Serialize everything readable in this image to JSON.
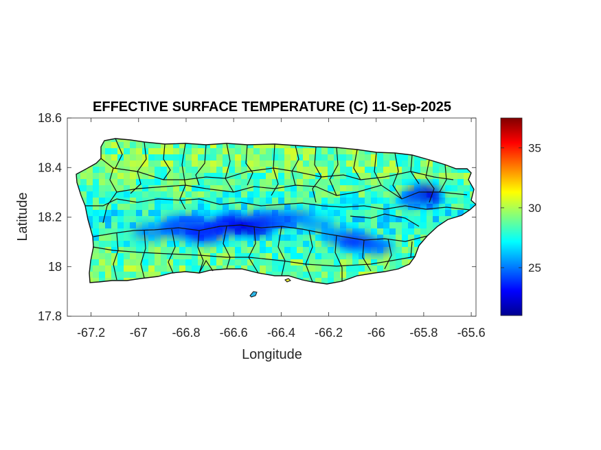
{
  "title": "EFFECTIVE SURFACE TEMPERATURE (C) 11-Sep-2025",
  "xlabel": "Longitude",
  "ylabel": "Latitude",
  "chart_data": {
    "type": "heatmap",
    "title": "EFFECTIVE SURFACE TEMPERATURE (C) 11-Sep-2025",
    "xlabel": "Longitude",
    "ylabel": "Latitude",
    "xlim": [
      -67.3,
      -65.58
    ],
    "ylim": [
      17.8,
      18.6
    ],
    "xticks": [
      -67.2,
      -67,
      -66.8,
      -66.6,
      -66.4,
      -66.2,
      -66,
      -65.8,
      -65.6
    ],
    "xtick_labels": [
      "-67.2",
      "-67",
      "-66.8",
      "-66.6",
      "-66.4",
      "-66.2",
      "-66",
      "-65.8",
      "-65.6"
    ],
    "yticks": [
      17.8,
      18,
      18.2,
      18.4,
      18.6
    ],
    "ytick_labels": [
      "17.8",
      "18",
      "18.2",
      "18.4",
      "18.6"
    ],
    "colormap": "jet",
    "colorbar": {
      "range": [
        21,
        37.5
      ],
      "ticks": [
        25,
        30,
        35
      ],
      "tick_labels": [
        "25",
        "30",
        "35"
      ]
    },
    "grid": false,
    "cool_regions": [
      {
        "lon": -66.78,
        "lat": 18.15,
        "value": 23
      },
      {
        "lon": -66.55,
        "lat": 18.17,
        "value": 22.5
      },
      {
        "lon": -66.4,
        "lat": 18.2,
        "value": 24
      },
      {
        "lon": -66.05,
        "lat": 18.1,
        "value": 23.5
      },
      {
        "lon": -65.8,
        "lat": 18.29,
        "value": 22.5
      }
    ],
    "typical_value": 29
  },
  "colors": {
    "axes": "#262626",
    "border": "#000000",
    "background": "#ffffff"
  }
}
